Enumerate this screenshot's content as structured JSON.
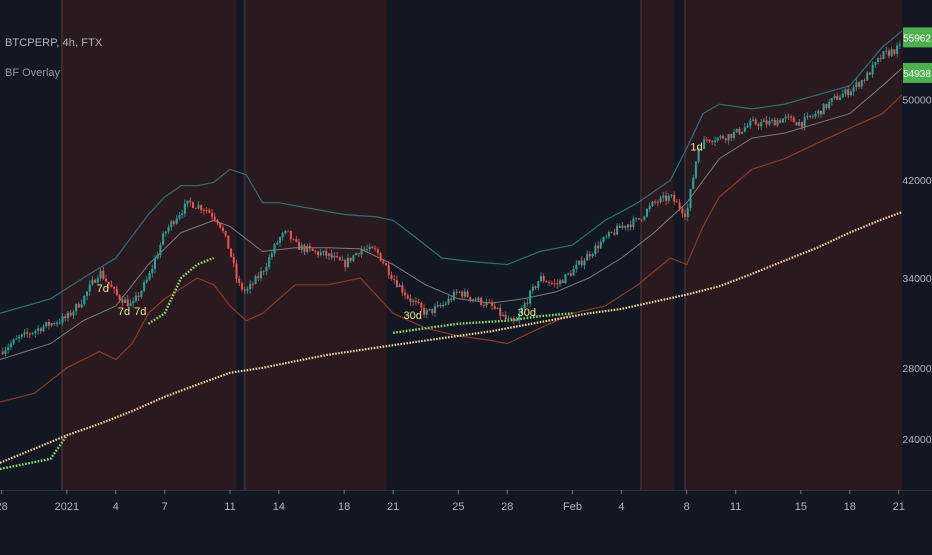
{
  "header": {
    "symbol_title": "BTCPERP, 4h, FTX",
    "indicator_title": "BF Overlay"
  },
  "colors": {
    "background": "#131722",
    "shade": "#2a1a20",
    "shade_edge": "#3a2a33",
    "axis_text": "#b2b5be",
    "bull_candle": "#26a69a",
    "bear_candle": "#ef5350",
    "upper_band": "#2e6f73",
    "lower_band": "#8a3a2a",
    "mid_band": "#7a7a82",
    "long_ma": "#ffe0a0",
    "green_dots": "#8fe36a",
    "price_badge": "#4caf50",
    "marker_label": "#f0e68c"
  },
  "chart_data": {
    "type": "candlestick",
    "symbol": "BTCPERP",
    "timeframe": "4h",
    "exchange": "FTX",
    "indicator": "BF Overlay",
    "y_scale": "log",
    "ylim": [
      21500,
      62000
    ],
    "y_ticks": [
      24000,
      28000,
      34000,
      42000,
      50000
    ],
    "x_ticks": [
      {
        "label": "28",
        "day": -4
      },
      {
        "label": "2021",
        "day": 0
      },
      {
        "label": "4",
        "day": 3
      },
      {
        "label": "7",
        "day": 6
      },
      {
        "label": "11",
        "day": 10
      },
      {
        "label": "14",
        "day": 13
      },
      {
        "label": "18",
        "day": 17
      },
      {
        "label": "21",
        "day": 20
      },
      {
        "label": "25",
        "day": 24
      },
      {
        "label": "28",
        "day": 27
      },
      {
        "label": "Feb",
        "day": 31
      },
      {
        "label": "4",
        "day": 34
      },
      {
        "label": "8",
        "day": 38
      },
      {
        "label": "11",
        "day": 41
      },
      {
        "label": "15",
        "day": 45
      },
      {
        "label": "18",
        "day": 48
      },
      {
        "label": "21",
        "day": 51
      }
    ],
    "xlim_days": [
      -4.1,
      51.2
    ],
    "price_badges": [
      {
        "label": "55962",
        "value": 55962
      },
      {
        "label": "54938",
        "value": 54938
      }
    ],
    "price_path": [
      [
        -4.1,
        29000
      ],
      [
        -3,
        29800
      ],
      [
        -1.5,
        30600
      ],
      [
        0,
        31200
      ],
      [
        1,
        32500
      ],
      [
        2,
        34500
      ],
      [
        3,
        32800
      ],
      [
        4,
        32000
      ],
      [
        5,
        34000
      ],
      [
        6,
        37500
      ],
      [
        6.8,
        39000
      ],
      [
        7.5,
        40000
      ],
      [
        8.5,
        39500
      ],
      [
        9.3,
        38500
      ],
      [
        10,
        36000
      ],
      [
        10.5,
        33500
      ],
      [
        11,
        33000
      ],
      [
        12,
        34500
      ],
      [
        13,
        37000
      ],
      [
        13.5,
        37500
      ],
      [
        14,
        36500
      ],
      [
        15,
        36000
      ],
      [
        16,
        35700
      ],
      [
        17,
        35000
      ],
      [
        18,
        36200
      ],
      [
        19,
        36000
      ],
      [
        20,
        34000
      ],
      [
        21,
        32500
      ],
      [
        22,
        31500
      ],
      [
        23,
        32000
      ],
      [
        24,
        33000
      ],
      [
        25,
        32500
      ],
      [
        26,
        32000
      ],
      [
        27,
        31000
      ],
      [
        27.5,
        30800
      ],
      [
        28,
        32000
      ],
      [
        29,
        34000
      ],
      [
        30,
        33500
      ],
      [
        31,
        34500
      ],
      [
        32,
        35800
      ],
      [
        33,
        37000
      ],
      [
        34,
        38000
      ],
      [
        35,
        38500
      ],
      [
        36,
        40000
      ],
      [
        37,
        40500
      ],
      [
        38,
        39000
      ],
      [
        38.7,
        45000
      ],
      [
        39.3,
        46000
      ],
      [
        40,
        46000
      ],
      [
        41,
        46500
      ],
      [
        42,
        47500
      ],
      [
        43,
        47500
      ],
      [
        44,
        48000
      ],
      [
        45,
        47500
      ],
      [
        46,
        48500
      ],
      [
        47,
        50000
      ],
      [
        48,
        51000
      ],
      [
        49,
        52500
      ],
      [
        50,
        55000
      ],
      [
        51.2,
        56000
      ]
    ],
    "upper_band": [
      [
        -4.1,
        31500
      ],
      [
        -1,
        32500
      ],
      [
        1,
        34000
      ],
      [
        3,
        35500
      ],
      [
        5,
        39000
      ],
      [
        6,
        40500
      ],
      [
        7,
        41500
      ],
      [
        8,
        41500
      ],
      [
        9,
        41800
      ],
      [
        10,
        43000
      ],
      [
        11,
        42500
      ],
      [
        12,
        40000
      ],
      [
        13,
        40000
      ],
      [
        15,
        39500
      ],
      [
        17,
        39000
      ],
      [
        19,
        38800
      ],
      [
        20,
        38500
      ],
      [
        21,
        37500
      ],
      [
        23,
        35500
      ],
      [
        25,
        35200
      ],
      [
        27,
        35000
      ],
      [
        29,
        36000
      ],
      [
        31,
        36500
      ],
      [
        33,
        38500
      ],
      [
        35,
        40000
      ],
      [
        37,
        42000
      ],
      [
        38,
        45000
      ],
      [
        39,
        48500
      ],
      [
        40,
        49500
      ],
      [
        42,
        49000
      ],
      [
        44,
        49500
      ],
      [
        46,
        50500
      ],
      [
        48,
        51500
      ],
      [
        50,
        56000
      ],
      [
        51.2,
        58000
      ]
    ],
    "lower_band": [
      [
        -4.1,
        26000
      ],
      [
        -2,
        26500
      ],
      [
        0,
        28000
      ],
      [
        2,
        29000
      ],
      [
        3,
        28500
      ],
      [
        4,
        29500
      ],
      [
        5,
        31500
      ],
      [
        6,
        32500
      ],
      [
        8,
        34000
      ],
      [
        9,
        33500
      ],
      [
        10,
        32000
      ],
      [
        11,
        31000
      ],
      [
        12,
        31500
      ],
      [
        14,
        33500
      ],
      [
        16,
        33500
      ],
      [
        18,
        34000
      ],
      [
        20,
        31500
      ],
      [
        22,
        30500
      ],
      [
        24,
        30000
      ],
      [
        26,
        29700
      ],
      [
        27,
        29500
      ],
      [
        29,
        30500
      ],
      [
        31,
        31500
      ],
      [
        33,
        32000
      ],
      [
        35,
        33500
      ],
      [
        37,
        35500
      ],
      [
        38,
        35000
      ],
      [
        39,
        38000
      ],
      [
        40,
        40500
      ],
      [
        42,
        43000
      ],
      [
        44,
        44000
      ],
      [
        46,
        45500
      ],
      [
        48,
        47000
      ],
      [
        50,
        48500
      ],
      [
        51.2,
        50500
      ]
    ],
    "mid_band": [
      [
        -4.1,
        28500
      ],
      [
        -1,
        29500
      ],
      [
        1,
        31000
      ],
      [
        3,
        32000
      ],
      [
        5,
        35000
      ],
      [
        7,
        37500
      ],
      [
        9,
        38500
      ],
      [
        10,
        38000
      ],
      [
        12,
        36000
      ],
      [
        14,
        36300
      ],
      [
        16,
        36300
      ],
      [
        18,
        36200
      ],
      [
        20,
        35000
      ],
      [
        22,
        33500
      ],
      [
        24,
        32500
      ],
      [
        26,
        32200
      ],
      [
        28,
        32500
      ],
      [
        30,
        33000
      ],
      [
        32,
        34000
      ],
      [
        34,
        35500
      ],
      [
        36,
        37500
      ],
      [
        38,
        40000
      ],
      [
        40,
        44000
      ],
      [
        42,
        46000
      ],
      [
        44,
        46500
      ],
      [
        46,
        47500
      ],
      [
        48,
        48500
      ],
      [
        50,
        51500
      ],
      [
        51.2,
        53500
      ]
    ],
    "long_ma": [
      [
        -4.1,
        22800
      ],
      [
        -2,
        23500
      ],
      [
        0,
        24200
      ],
      [
        2,
        24800
      ],
      [
        4,
        25500
      ],
      [
        6,
        26300
      ],
      [
        8,
        27000
      ],
      [
        10,
        27700
      ],
      [
        12,
        28000
      ],
      [
        14,
        28400
      ],
      [
        16,
        28800
      ],
      [
        18,
        29100
      ],
      [
        20,
        29400
      ],
      [
        22,
        29700
      ],
      [
        24,
        30000
      ],
      [
        26,
        30300
      ],
      [
        28,
        30700
      ],
      [
        30,
        31100
      ],
      [
        32,
        31500
      ],
      [
        34,
        31800
      ],
      [
        36,
        32300
      ],
      [
        38,
        32800
      ],
      [
        40,
        33400
      ],
      [
        42,
        34300
      ],
      [
        44,
        35300
      ],
      [
        46,
        36300
      ],
      [
        48,
        37500
      ],
      [
        50,
        38600
      ],
      [
        51.2,
        39200
      ]
    ],
    "green_dot_segments": [
      [
        [
          -4.1,
          22500
        ],
        [
          -1,
          23000
        ],
        [
          0,
          24200
        ]
      ],
      [
        [
          5,
          30800
        ],
        [
          6,
          31500
        ],
        [
          7,
          34000
        ],
        [
          8,
          35000
        ],
        [
          9,
          35500
        ]
      ],
      [
        [
          20,
          30200
        ],
        [
          24,
          30800
        ],
        [
          27,
          31000
        ],
        [
          29,
          31300
        ],
        [
          31,
          31500
        ]
      ]
    ],
    "marker_labels": [
      {
        "text": "7d",
        "day": 2.2,
        "value": 33000
      },
      {
        "text": "7d",
        "day": 3.5,
        "value": 31400
      },
      {
        "text": "7d",
        "day": 4.5,
        "value": 31400
      },
      {
        "text": "30d",
        "day": 21.2,
        "value": 31100
      },
      {
        "text": "30d",
        "day": 28.2,
        "value": 31300
      },
      {
        "text": "1d",
        "day": 38.6,
        "value": 44800
      }
    ],
    "shaded_regions": [
      [
        -0.3,
        10.4
      ],
      [
        10.9,
        19.6
      ],
      [
        35.2,
        37.2
      ],
      [
        37.9,
        51.2
      ]
    ]
  }
}
